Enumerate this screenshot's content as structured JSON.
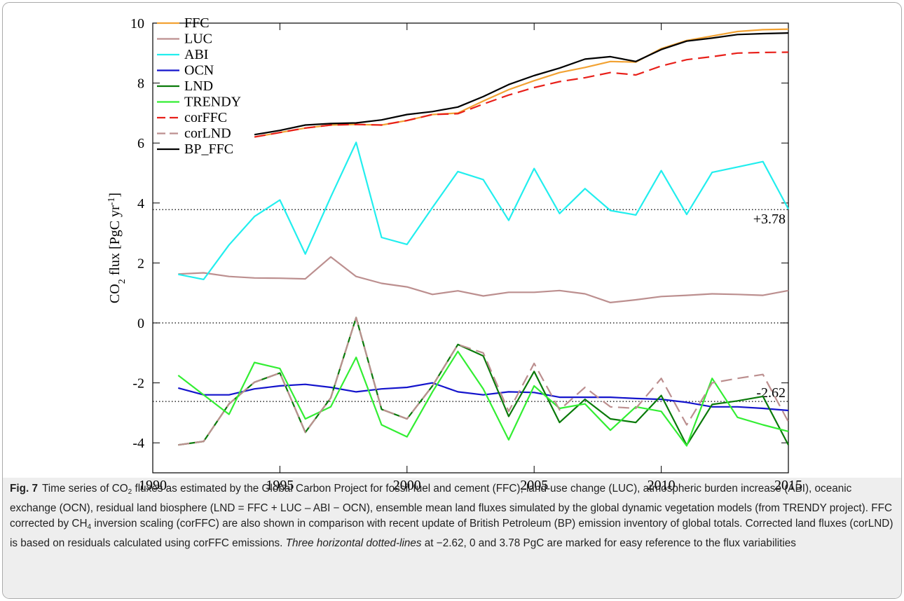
{
  "chart_data": {
    "type": "line",
    "y_label": [
      {
        "text": "CO"
      },
      {
        "text": "2",
        "style": "sub"
      },
      {
        "text": " flux [PgC yr"
      },
      {
        "text": "-1",
        "style": "sup"
      },
      {
        "text": "]"
      }
    ],
    "x": [
      1991,
      1992,
      1993,
      1994,
      1995,
      1996,
      1997,
      1998,
      1999,
      2000,
      2001,
      2002,
      2003,
      2004,
      2005,
      2006,
      2007,
      2008,
      2009,
      2010,
      2011,
      2012,
      2013,
      2014,
      2015
    ],
    "xlim": [
      1990,
      2015
    ],
    "xticks": [
      1990,
      1995,
      2000,
      2005,
      2010,
      2015
    ],
    "ylim": [
      -5,
      10
    ],
    "yticks": [
      -4,
      -2,
      0,
      2,
      4,
      6,
      8,
      10
    ],
    "legend": "upper-left",
    "series": [
      {
        "name": "FFC",
        "color": "#f2a233",
        "dash": false,
        "values": [
          null,
          null,
          null,
          6.2,
          6.35,
          6.5,
          6.6,
          6.62,
          6.6,
          6.75,
          6.95,
          7.0,
          7.4,
          7.78,
          8.08,
          8.35,
          8.52,
          8.72,
          8.7,
          9.15,
          9.42,
          9.57,
          9.72,
          9.78,
          9.8
        ]
      },
      {
        "name": "LUC",
        "color": "#bc8f8f",
        "dash": false,
        "values": [
          1.63,
          1.67,
          1.55,
          1.5,
          1.49,
          1.47,
          2.2,
          1.55,
          1.32,
          1.2,
          0.95,
          1.07,
          0.9,
          1.02,
          1.02,
          1.08,
          0.97,
          0.68,
          0.77,
          0.88,
          0.92,
          0.97,
          0.95,
          0.92,
          1.08
        ]
      },
      {
        "name": "ABI",
        "color": "#22eeee",
        "dash": false,
        "values": [
          1.62,
          1.45,
          2.6,
          3.55,
          4.1,
          2.3,
          4.2,
          6.02,
          2.85,
          2.62,
          3.85,
          5.05,
          4.78,
          3.42,
          5.15,
          3.65,
          4.48,
          3.75,
          3.6,
          5.08,
          3.62,
          5.02,
          5.2,
          5.38,
          3.8
        ]
      },
      {
        "name": "OCN",
        "color": "#1414cc",
        "dash": false,
        "values": [
          -2.17,
          -2.4,
          -2.4,
          -2.2,
          -2.1,
          -2.05,
          -2.15,
          -2.3,
          -2.2,
          -2.15,
          -2.0,
          -2.3,
          -2.4,
          -2.3,
          -2.32,
          -2.48,
          -2.48,
          -2.48,
          -2.52,
          -2.55,
          -2.65,
          -2.8,
          -2.8,
          -2.85,
          -2.92
        ]
      },
      {
        "name": "LND",
        "color": "#0a7a0a",
        "dash": false,
        "values": [
          -4.07,
          -3.95,
          -2.7,
          -1.98,
          -1.67,
          -3.65,
          -2.5,
          0.18,
          -2.88,
          -3.2,
          -2.1,
          -0.72,
          -1.1,
          -3.12,
          -1.62,
          -3.32,
          -2.55,
          -3.2,
          -3.32,
          -2.42,
          -4.08,
          -2.72,
          -2.6,
          -2.45,
          -4.07
        ]
      },
      {
        "name": "TRENDY",
        "color": "#33ee33",
        "dash": false,
        "values": [
          -1.75,
          -2.4,
          -3.05,
          -1.32,
          -1.52,
          -3.2,
          -2.8,
          -1.15,
          -3.4,
          -3.8,
          -2.3,
          -0.95,
          -2.2,
          -3.9,
          -2.1,
          -2.85,
          -2.7,
          -3.58,
          -2.8,
          -2.95,
          -4.1,
          -1.85,
          -3.15,
          -3.4,
          -3.62
        ]
      },
      {
        "name": "corFFC",
        "color": "#e8201a",
        "dash": true,
        "values": [
          null,
          null,
          null,
          6.2,
          6.35,
          6.5,
          6.6,
          6.62,
          6.6,
          6.75,
          6.95,
          6.98,
          7.3,
          7.6,
          7.85,
          8.05,
          8.18,
          8.35,
          8.27,
          8.57,
          8.78,
          8.88,
          9.0,
          9.02,
          9.03
        ]
      },
      {
        "name": "corLND",
        "color": "#bc8f8f",
        "dash": true,
        "values": [
          -4.07,
          -3.95,
          -2.7,
          -1.98,
          -1.67,
          -3.65,
          -2.5,
          0.18,
          -2.88,
          -3.2,
          -2.1,
          -0.72,
          -1.0,
          -2.95,
          -1.35,
          -2.9,
          -2.15,
          -2.8,
          -2.85,
          -1.85,
          -3.4,
          -2.0,
          -1.85,
          -1.72,
          -3.3
        ]
      },
      {
        "name": "BP_FFC",
        "color": "#000000",
        "dash": false,
        "values": [
          null,
          null,
          null,
          6.28,
          6.42,
          6.6,
          6.65,
          6.67,
          6.77,
          6.95,
          7.05,
          7.2,
          7.55,
          7.95,
          8.25,
          8.5,
          8.8,
          8.88,
          8.72,
          9.12,
          9.4,
          9.5,
          9.62,
          9.65,
          9.67
        ]
      }
    ],
    "reference_lines": [
      {
        "value": 3.78,
        "label": "+3.78"
      },
      {
        "value": 0
      },
      {
        "value": -2.62,
        "label": "-2.62"
      }
    ],
    "caption": {
      "label": "Fig. 7",
      "runs": [
        {
          "text": "Time series of CO"
        },
        {
          "text": "2",
          "style": "sub"
        },
        {
          "text": " fluxes as estimated by the Global Carbon Project for fossil fuel and cement (FFC), land-use change (LUC), atmospheric burden increase (ABI), oceanic exchange (OCN), residual land biosphere (LND = FFC + LUC – ABI − OCN), ensemble mean land fluxes simulated by the global dynamic vegetation models (from TRENDY project). FFC corrected by CH"
        },
        {
          "text": "4",
          "style": "sub"
        },
        {
          "text": " inversion scaling (corFFC) are also shown in comparison with recent update of British Petroleum (BP) emission inventory of global totals. Corrected land fluxes (corLND) is based on residuals calculated using corFFC emissions. "
        },
        {
          "text": "Three horizontal dotted-lines",
          "style": "italic"
        },
        {
          "text": " at −2.62, 0 and 3.78 PgC are marked for easy reference to the flux variabilities"
        }
      ]
    }
  }
}
